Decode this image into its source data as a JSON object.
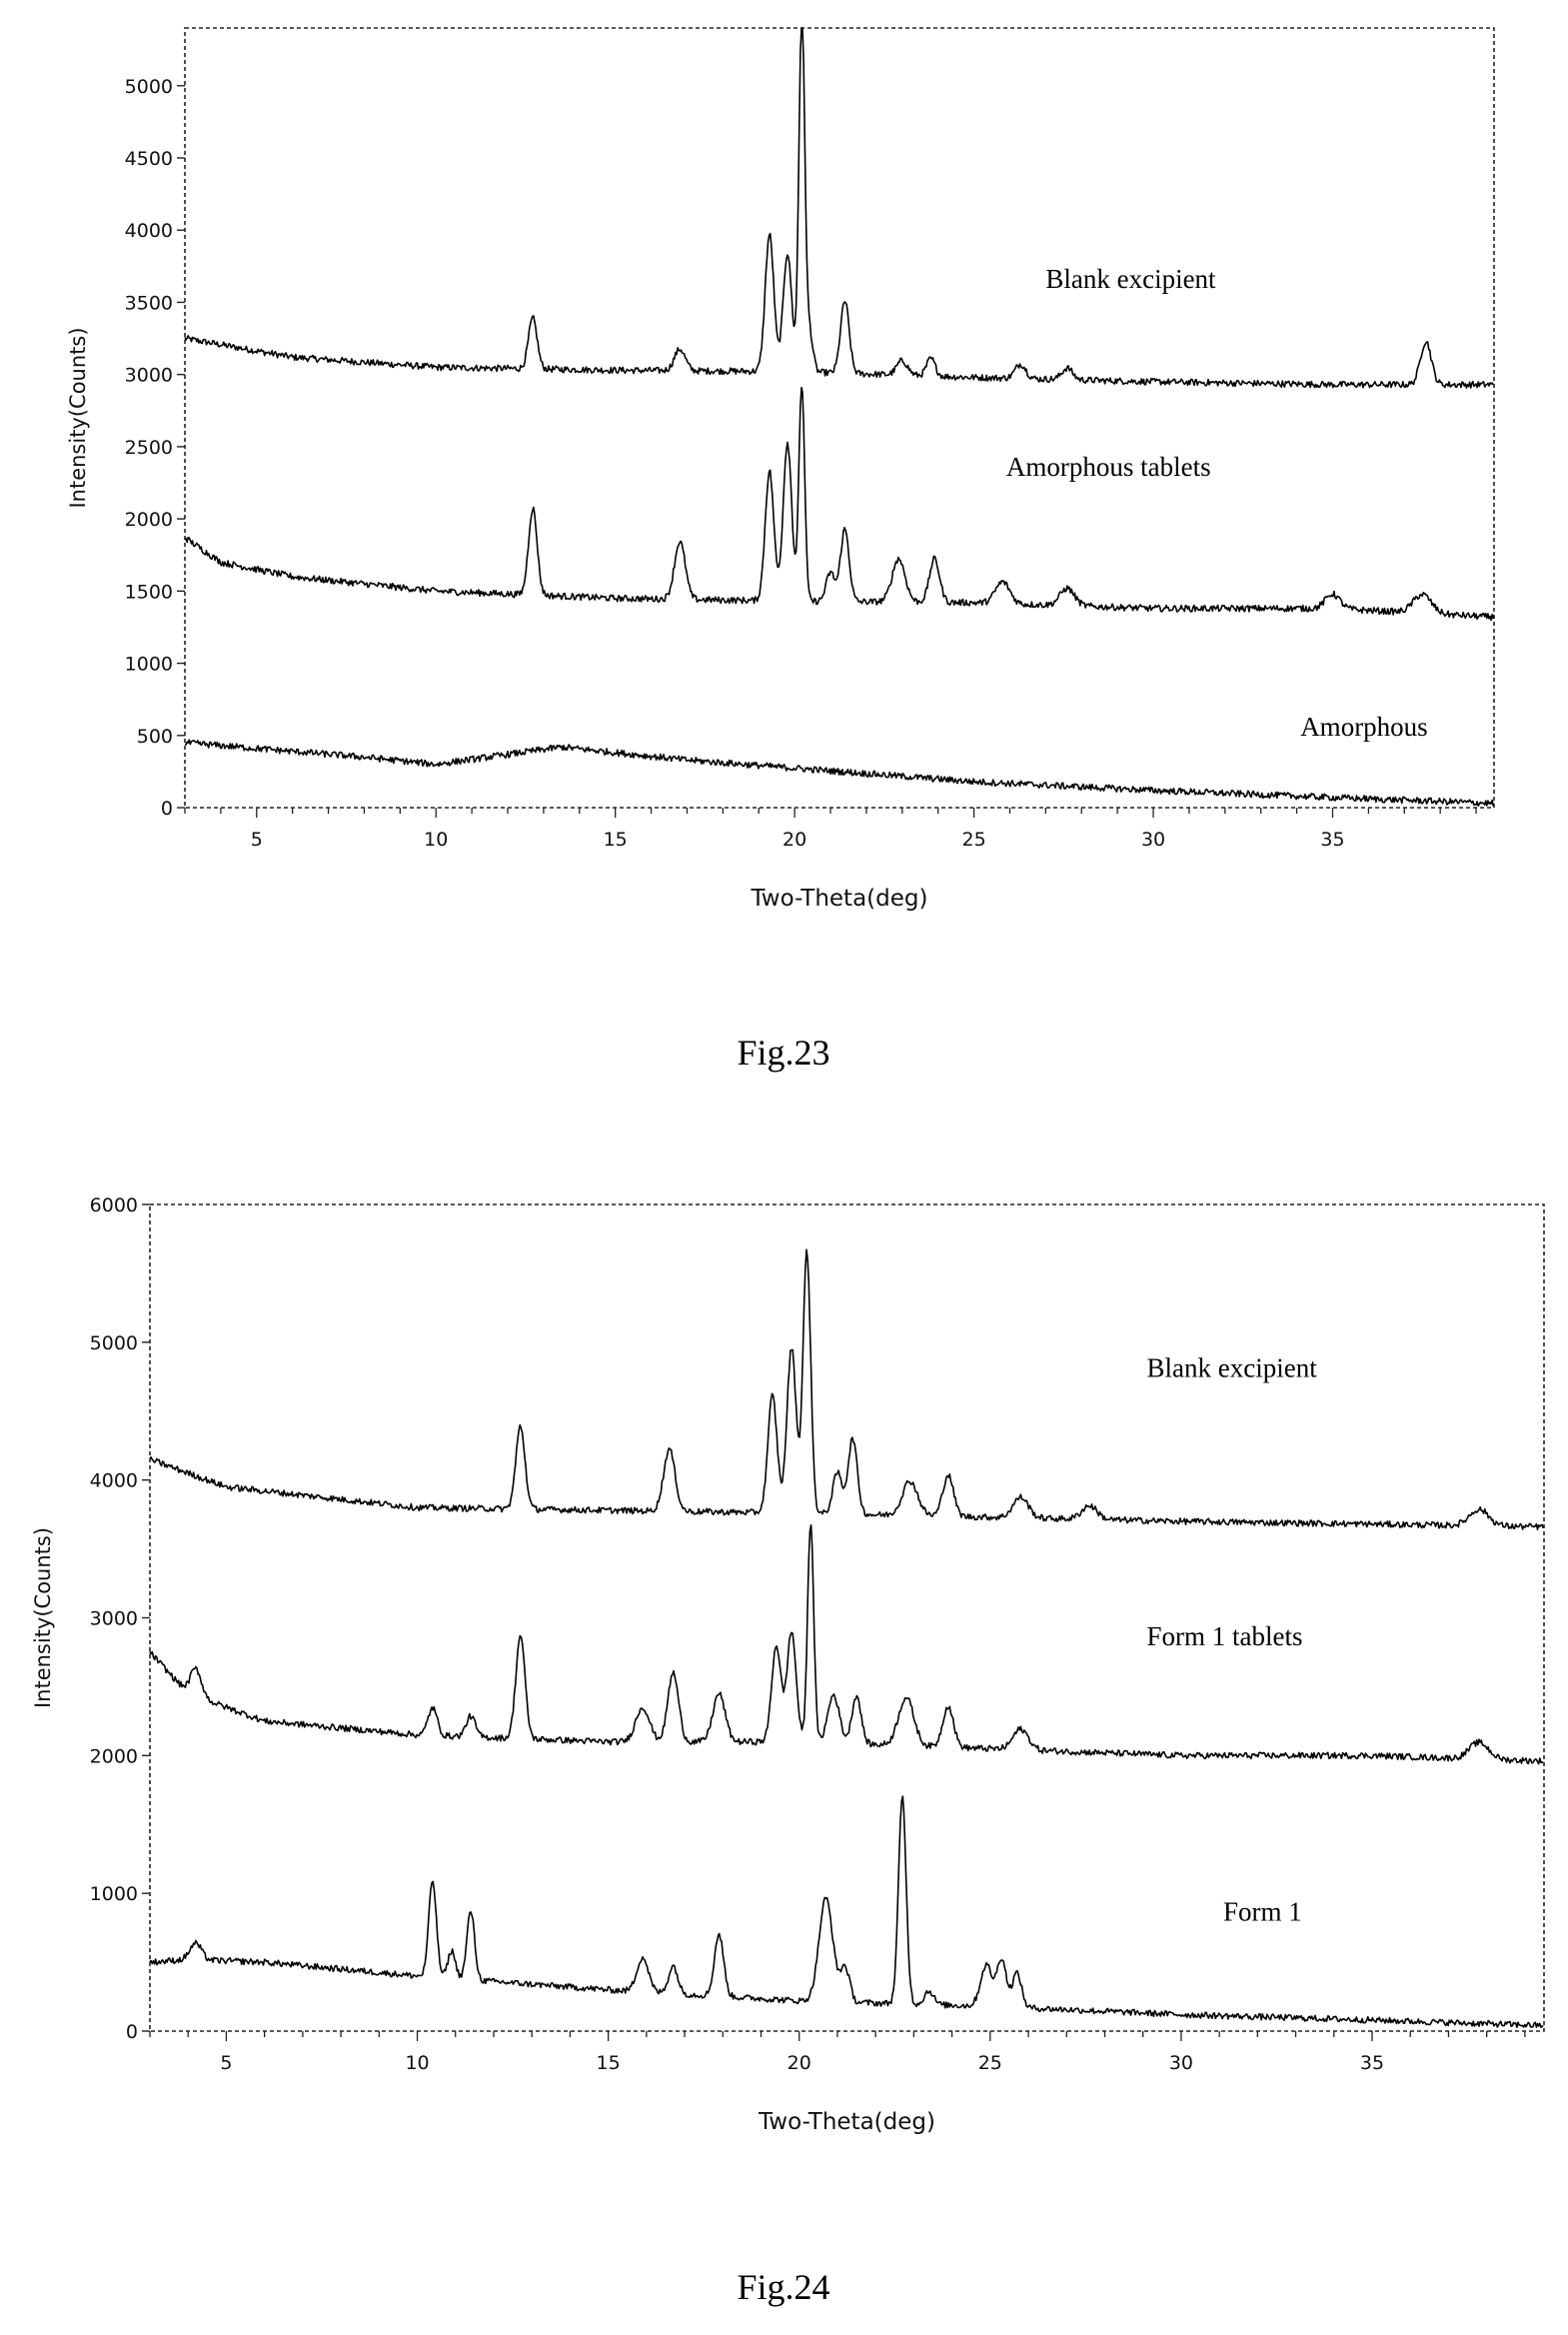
{
  "chart_data": [
    {
      "type": "line",
      "caption": "Fig.23",
      "xlabel": "Two-Theta(deg)",
      "ylabel": "Intensity(Counts)",
      "xlim": [
        3,
        39.5
      ],
      "ylim": [
        0,
        5400
      ],
      "xticks": [
        5,
        10,
        15,
        20,
        25,
        30,
        35
      ],
      "yticks": [
        0,
        500,
        1000,
        1500,
        2000,
        2500,
        3000,
        3500,
        4000,
        4500,
        5000
      ],
      "ytick_labels": [
        "0",
        "500",
        "1000",
        "1500",
        "2000",
        "2500",
        "3000",
        "3500",
        "4000",
        "4500",
        "5000"
      ],
      "series": [
        {
          "name": "Blank excipient",
          "label_at": [
            27,
            3600
          ],
          "baseline": [
            [
              3,
              3250
            ],
            [
              6,
              3120
            ],
            [
              10,
              3050
            ],
            [
              15,
              3030
            ],
            [
              20,
              3020
            ],
            [
              25,
              2980
            ],
            [
              30,
              2950
            ],
            [
              35,
              2930
            ],
            [
              39.5,
              2930
            ]
          ],
          "peaks": [
            [
              12.7,
              350,
              0.12
            ],
            [
              16.8,
              150,
              0.15
            ],
            [
              19.3,
              950,
              0.12
            ],
            [
              19.8,
              820,
              0.12
            ],
            [
              20.2,
              2500,
              0.08
            ],
            [
              20.4,
              300,
              0.1
            ],
            [
              21.4,
              500,
              0.12
            ],
            [
              23.0,
              100,
              0.15
            ],
            [
              23.8,
              120,
              0.12
            ],
            [
              26.3,
              100,
              0.15
            ],
            [
              27.6,
              80,
              0.15
            ],
            [
              37.6,
              300,
              0.15
            ]
          ]
        },
        {
          "name": "Amorphous tablets",
          "label_at": [
            25.9,
            2300
          ],
          "baseline": [
            [
              3,
              1870
            ],
            [
              4,
              1700
            ],
            [
              6,
              1600
            ],
            [
              10,
              1500
            ],
            [
              15,
              1450
            ],
            [
              20,
              1430
            ],
            [
              25,
              1420
            ],
            [
              30,
              1380
            ],
            [
              35,
              1380
            ],
            [
              39.5,
              1320
            ]
          ],
          "peaks": [
            [
              12.7,
              600,
              0.12
            ],
            [
              16.8,
              400,
              0.15
            ],
            [
              19.3,
              900,
              0.12
            ],
            [
              19.8,
              1100,
              0.12
            ],
            [
              20.2,
              1500,
              0.08
            ],
            [
              21.0,
              200,
              0.12
            ],
            [
              21.4,
              500,
              0.12
            ],
            [
              22.9,
              300,
              0.18
            ],
            [
              23.9,
              300,
              0.14
            ],
            [
              25.8,
              150,
              0.2
            ],
            [
              27.6,
              120,
              0.2
            ],
            [
              35.0,
              100,
              0.2
            ],
            [
              37.5,
              130,
              0.25
            ]
          ]
        },
        {
          "name": "Amorphous",
          "label_at": [
            34.1,
            500
          ],
          "baseline": [
            [
              3,
              450
            ],
            [
              8,
              350
            ],
            [
              10,
              300
            ],
            [
              13.5,
              420
            ],
            [
              17,
              330
            ],
            [
              25,
              180
            ],
            [
              30,
              120
            ],
            [
              35,
              70
            ],
            [
              39.5,
              30
            ]
          ],
          "peaks": []
        }
      ]
    },
    {
      "type": "line",
      "caption": "Fig.24",
      "xlabel": "Two-Theta(deg)",
      "ylabel": "Intensity(Counts)",
      "xlim": [
        3,
        39.5
      ],
      "ylim": [
        0,
        6000
      ],
      "xticks": [
        5,
        10,
        15,
        20,
        25,
        30,
        35
      ],
      "yticks": [
        0,
        1000,
        2000,
        3000,
        4000,
        5000,
        6000
      ],
      "ytick_labels": [
        "0",
        "1000",
        "2000",
        "3000",
        "4000",
        "5000",
        "6000"
      ],
      "series": [
        {
          "name": "Blank excipient",
          "label_at": [
            29.1,
            4750
          ],
          "baseline": [
            [
              3,
              4150
            ],
            [
              5,
              3950
            ],
            [
              10,
              3800
            ],
            [
              15,
              3780
            ],
            [
              20,
              3760
            ],
            [
              25,
              3730
            ],
            [
              30,
              3700
            ],
            [
              35,
              3680
            ],
            [
              39.5,
              3660
            ]
          ],
          "peaks": [
            [
              12.7,
              600,
              0.12
            ],
            [
              16.6,
              450,
              0.15
            ],
            [
              19.3,
              850,
              0.12
            ],
            [
              19.8,
              1200,
              0.12
            ],
            [
              20.2,
              1900,
              0.1
            ],
            [
              21.0,
              300,
              0.12
            ],
            [
              21.4,
              550,
              0.12
            ],
            [
              22.9,
              250,
              0.2
            ],
            [
              23.9,
              300,
              0.14
            ],
            [
              25.8,
              150,
              0.2
            ],
            [
              27.6,
              100,
              0.2
            ],
            [
              37.8,
              120,
              0.25
            ]
          ]
        },
        {
          "name": "Form 1 tablets",
          "label_at": [
            29.1,
            2800
          ],
          "baseline": [
            [
              3,
              2750
            ],
            [
              4,
              2450
            ],
            [
              6,
              2250
            ],
            [
              10,
              2150
            ],
            [
              15,
              2100
            ],
            [
              20,
              2100
            ],
            [
              25,
              2050
            ],
            [
              30,
              2000
            ],
            [
              35,
              2000
            ],
            [
              39.5,
              1960
            ]
          ],
          "peaks": [
            [
              4.2,
              200,
              0.15
            ],
            [
              10.4,
              200,
              0.12
            ],
            [
              11.4,
              150,
              0.12
            ],
            [
              12.7,
              750,
              0.12
            ],
            [
              15.9,
              250,
              0.18
            ],
            [
              16.7,
              500,
              0.14
            ],
            [
              17.9,
              350,
              0.16
            ],
            [
              19.4,
              700,
              0.12
            ],
            [
              19.8,
              800,
              0.12
            ],
            [
              20.3,
              1600,
              0.08
            ],
            [
              20.9,
              350,
              0.15
            ],
            [
              21.5,
              350,
              0.12
            ],
            [
              22.8,
              350,
              0.2
            ],
            [
              23.9,
              300,
              0.14
            ],
            [
              25.8,
              150,
              0.2
            ],
            [
              37.8,
              120,
              0.25
            ]
          ]
        },
        {
          "name": "Form 1",
          "label_at": [
            31.1,
            800
          ],
          "baseline": [
            [
              3,
              500
            ],
            [
              4,
              520
            ],
            [
              6,
              500
            ],
            [
              8,
              450
            ],
            [
              10,
              400
            ],
            [
              15,
              300
            ],
            [
              20,
              220
            ],
            [
              25,
              180
            ],
            [
              30,
              120
            ],
            [
              35,
              80
            ],
            [
              39.5,
              40
            ]
          ],
          "peaks": [
            [
              4.2,
              120,
              0.15
            ],
            [
              10.4,
              700,
              0.1
            ],
            [
              10.9,
              200,
              0.1
            ],
            [
              11.4,
              500,
              0.1
            ],
            [
              15.9,
              250,
              0.15
            ],
            [
              16.7,
              200,
              0.12
            ],
            [
              17.9,
              450,
              0.12
            ],
            [
              20.7,
              750,
              0.18
            ],
            [
              21.2,
              250,
              0.12
            ],
            [
              22.7,
              1500,
              0.1
            ],
            [
              23.4,
              100,
              0.12
            ],
            [
              24.9,
              300,
              0.15
            ],
            [
              25.3,
              350,
              0.12
            ],
            [
              25.7,
              250,
              0.12
            ]
          ]
        }
      ]
    }
  ]
}
